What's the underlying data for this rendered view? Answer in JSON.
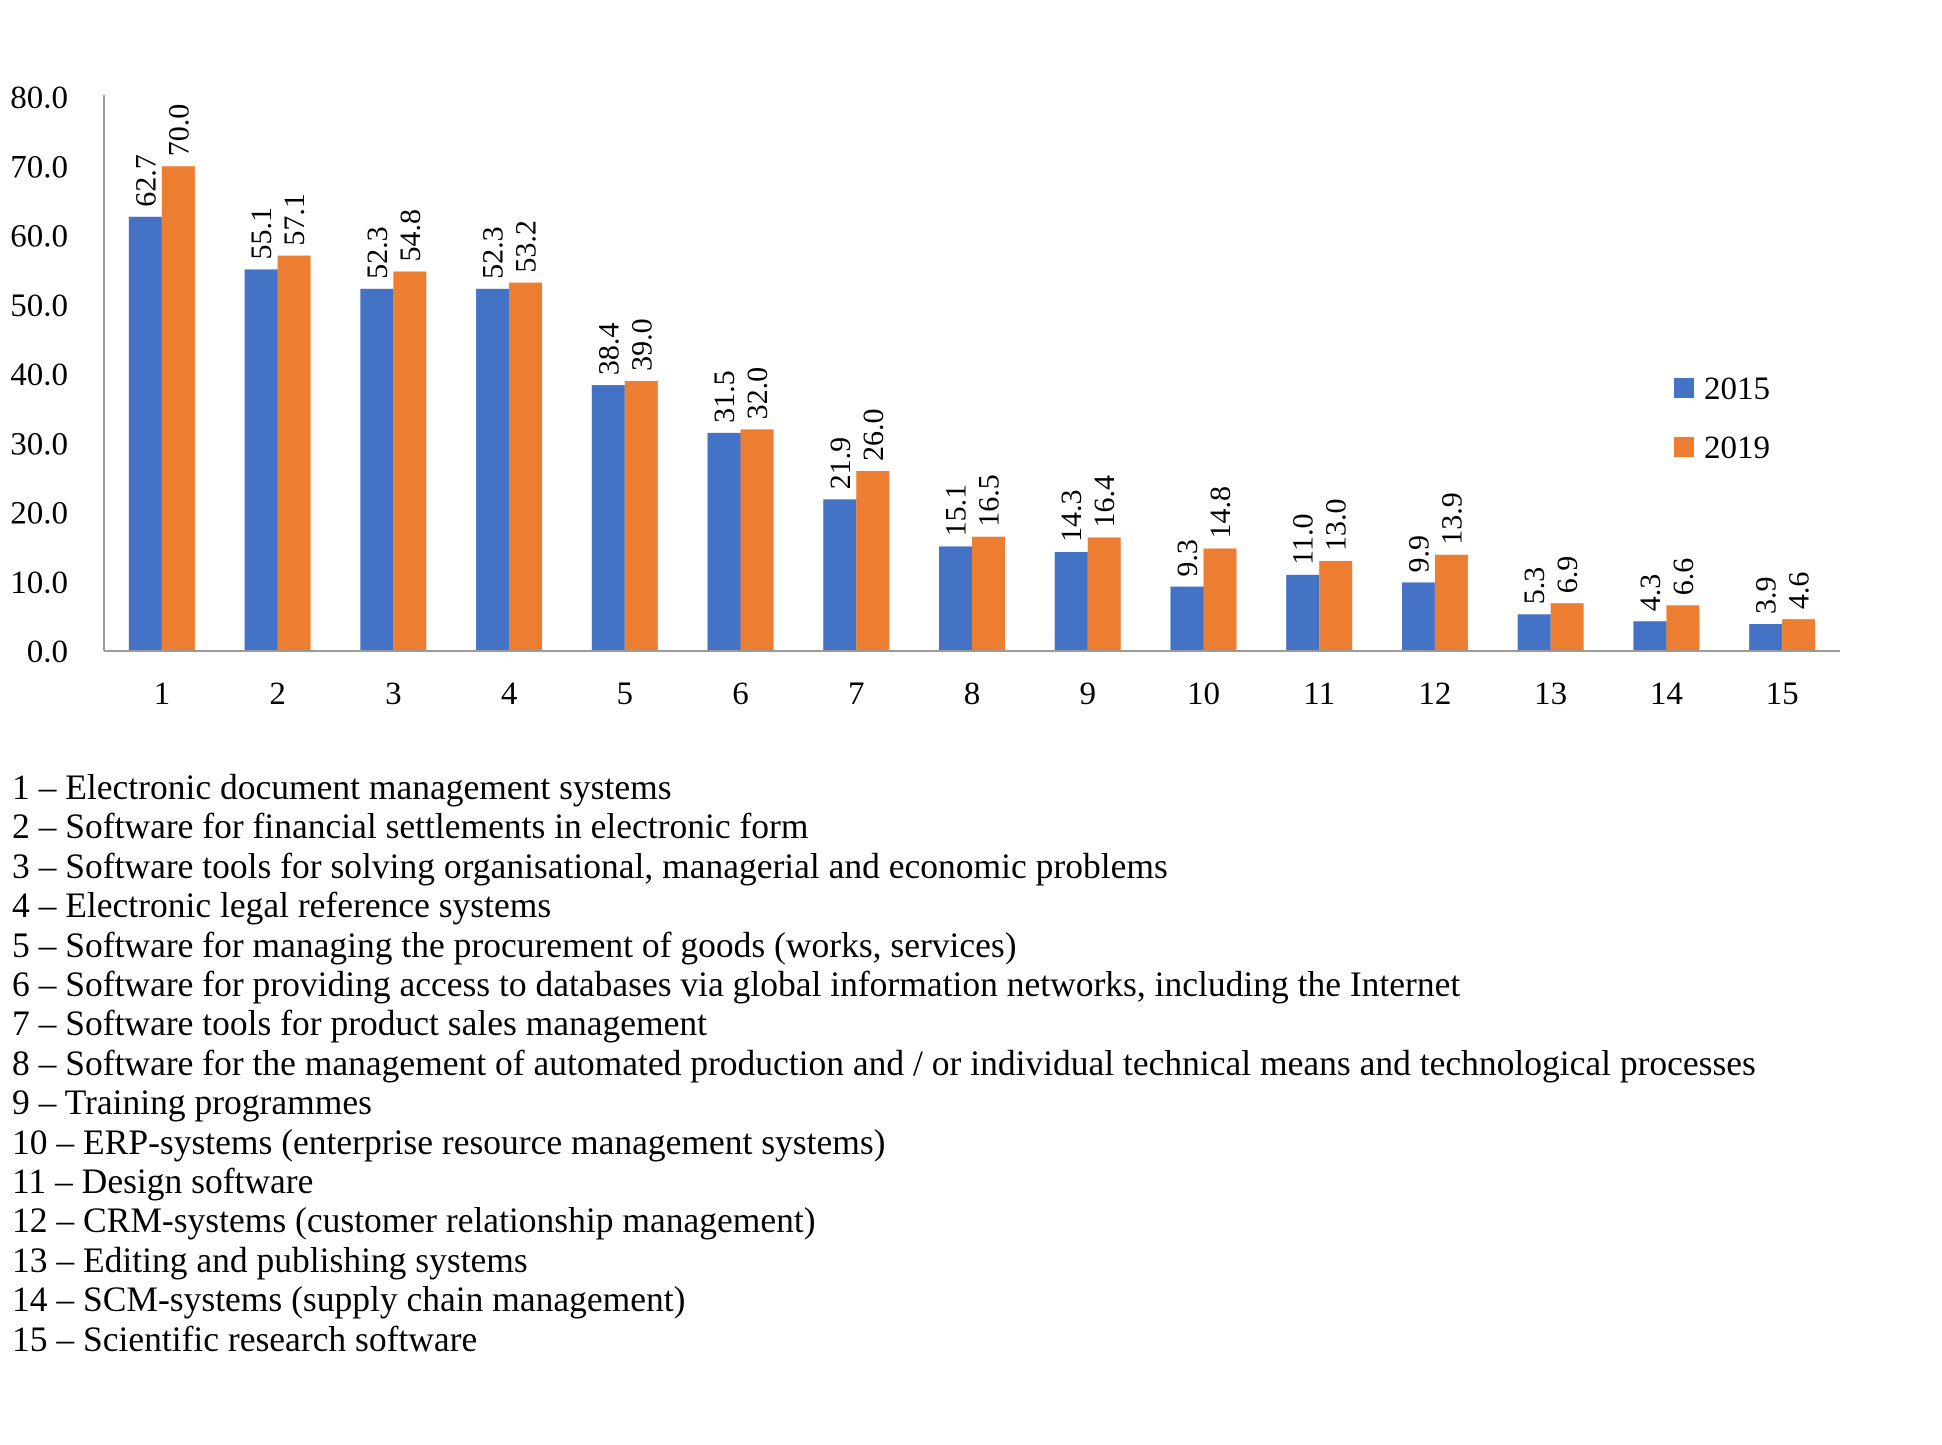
{
  "chart_data": {
    "type": "bar",
    "categories": [
      "1",
      "2",
      "3",
      "4",
      "5",
      "6",
      "7",
      "8",
      "9",
      "10",
      "11",
      "12",
      "13",
      "14",
      "15"
    ],
    "series": [
      {
        "name": "2015",
        "color": "#4472C4",
        "values": [
          62.7,
          55.1,
          52.3,
          52.3,
          38.4,
          31.5,
          21.9,
          15.1,
          14.3,
          9.3,
          11.0,
          9.9,
          5.3,
          4.3,
          3.9
        ]
      },
      {
        "name": "2019",
        "color": "#ED7D31",
        "values": [
          70.0,
          57.1,
          54.8,
          53.2,
          39.0,
          32.0,
          26.0,
          16.5,
          16.4,
          14.8,
          13.0,
          13.9,
          6.9,
          6.6,
          4.6
        ]
      }
    ],
    "yticks": [
      "0.0",
      "10.0",
      "20.0",
      "30.0",
      "40.0",
      "50.0",
      "60.0",
      "70.0",
      "80.0"
    ],
    "ylim": [
      0,
      80
    ],
    "title": "",
    "xlabel": "",
    "ylabel": "",
    "grid": false,
    "legend_position": "right",
    "data_labels": "vertical, above bars, one decimal place"
  },
  "category_legend": [
    "1 – Electronic document management systems",
    "2 – Software for financial settlements in electronic form",
    "3 – Software tools for solving organisational, managerial and economic problems",
    "4 – Electronic legal reference systems",
    "5 – Software for managing the procurement of goods (works, services)",
    "6 – Software for providing access to databases via global information networks, including the Internet",
    "7 – Software tools for product sales management",
    "8 – Software for the management of automated production and / or individual technical means and technological processes",
    "9 – Training programmes",
    "10 – ERP-systems (enterprise resource management systems)",
    "11 – Design software",
    "12 – CRM-systems (customer relationship management)",
    "13 – Editing and publishing systems",
    "14 – SCM-systems (supply chain management)",
    "15 – Scientific research software"
  ]
}
